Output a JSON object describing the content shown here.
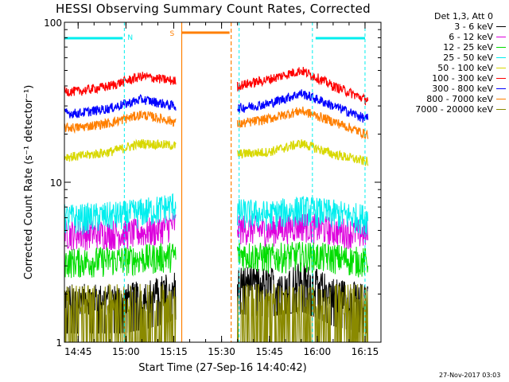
{
  "title": "HESSI Observing Summary Count Rates, Corrected",
  "footer": "27-Nov-2017 03:03",
  "legend": {
    "header": "Det 1,3, Att 0",
    "entries": [
      {
        "label": "3 - 6 keV",
        "color": "#000000"
      },
      {
        "label": "6 - 12 keV",
        "color": "#dd00dd"
      },
      {
        "label": "12 - 25 keV",
        "color": "#00dd00"
      },
      {
        "label": "25 - 50 keV",
        "color": "#00eeee"
      },
      {
        "label": "50 - 100 keV",
        "color": "#d8d800"
      },
      {
        "label": "100 - 300 keV",
        "color": "#ff0000"
      },
      {
        "label": "300 - 800 keV",
        "color": "#0000ff"
      },
      {
        "label": "800 - 7000 keV",
        "color": "#ff7f00"
      },
      {
        "label": "7000 - 20000 keV",
        "color": "#8a8a00"
      }
    ]
  },
  "chart_data": {
    "type": "line",
    "title": "HESSI Observing Summary Count Rates, Corrected",
    "xlabel": "Start Time (27-Sep-16 14:40:42)",
    "ylabel": "Corrected Count Rate (s⁻¹ detector⁻¹)",
    "y_scale": "log",
    "ylim": [
      1,
      100
    ],
    "y_ticks": [
      "1",
      "10",
      "100"
    ],
    "xlim": [
      "14:40:42",
      "16:20:00"
    ],
    "x_ticks": [
      "14:45",
      "15:00",
      "15:15",
      "15:30",
      "15:45",
      "16:00",
      "16:15"
    ],
    "x_unit": "time",
    "gaps": [
      [
        "15:15:40",
        "15:34:50"
      ]
    ],
    "markers": {
      "night_lines": [
        {
          "time": "14:59:30",
          "color": "#00eeee"
        },
        {
          "time": "15:35:30",
          "color": "#00eeee"
        },
        {
          "time": "16:15:00",
          "color": "#00eeee"
        },
        {
          "time": "15:58:30",
          "color": "#00eeee"
        }
      ],
      "saa_lines": [
        {
          "time": "15:17:30",
          "color": "#ff7f00"
        },
        {
          "time": "15:33:00",
          "color": "#ff7f00"
        }
      ],
      "night_bars": [
        {
          "label": "N",
          "start": "14:40:42",
          "end": "14:59:00",
          "color": "#00eeee"
        },
        {
          "label": "",
          "start": "15:59:30",
          "end": "16:15:00",
          "color": "#00eeee"
        }
      ],
      "saa_bars": [
        {
          "label": "S",
          "start": "15:17:30",
          "end": "15:32:30",
          "color": "#ff7f00"
        }
      ]
    },
    "series": [
      {
        "name": "3 - 6 keV",
        "color": "#000000",
        "t": [
          "14:45",
          "15:00",
          "15:10",
          "15:15",
          "15:35",
          "15:45",
          "15:55",
          "16:05",
          "16:15"
        ],
        "y": [
          1.9,
          1.9,
          2.1,
          2.3,
          2.5,
          2.4,
          2.6,
          2.1,
          1.9
        ]
      },
      {
        "name": "6 - 12 keV",
        "color": "#dd00dd",
        "t": [
          "14:45",
          "15:00",
          "15:10",
          "15:15",
          "15:35",
          "15:45",
          "15:55",
          "16:05",
          "16:15"
        ],
        "y": [
          4.8,
          4.8,
          5.0,
          5.5,
          5.2,
          5.0,
          5.4,
          5.0,
          4.8
        ]
      },
      {
        "name": "12 - 25 keV",
        "color": "#00dd00",
        "t": [
          "14:45",
          "15:00",
          "15:10",
          "15:15",
          "15:35",
          "15:45",
          "15:55",
          "16:05",
          "16:15"
        ],
        "y": [
          3.2,
          3.3,
          3.4,
          3.5,
          3.6,
          3.4,
          3.5,
          3.4,
          3.2
        ]
      },
      {
        "name": "25 - 50 keV",
        "color": "#00eeee",
        "t": [
          "14:45",
          "15:00",
          "15:10",
          "15:15",
          "15:35",
          "15:45",
          "15:55",
          "16:05",
          "16:15"
        ],
        "y": [
          6.0,
          6.3,
          6.8,
          7.2,
          6.5,
          6.3,
          6.8,
          6.4,
          6.0
        ]
      },
      {
        "name": "50 - 100 keV",
        "color": "#d8d800",
        "t": [
          "14:45",
          "14:55",
          "15:05",
          "15:15",
          "15:35",
          "15:45",
          "15:55",
          "16:05",
          "16:15"
        ],
        "y": [
          14.5,
          15.5,
          17.5,
          17.0,
          15.0,
          15.5,
          17.5,
          15.0,
          13.5
        ]
      },
      {
        "name": "100 - 300 keV",
        "color": "#ff0000",
        "t": [
          "14:45",
          "14:55",
          "15:05",
          "15:15",
          "15:35",
          "15:45",
          "15:55",
          "16:05",
          "16:15"
        ],
        "y": [
          37,
          40,
          46,
          43,
          40,
          44,
          50,
          40,
          33
        ]
      },
      {
        "name": "300 - 800 keV",
        "color": "#0000ff",
        "t": [
          "14:45",
          "14:55",
          "15:05",
          "15:15",
          "15:35",
          "15:45",
          "15:55",
          "16:05",
          "16:15"
        ],
        "y": [
          27,
          29,
          33,
          30,
          29,
          31,
          36,
          30,
          25
        ]
      },
      {
        "name": "800 - 7000 keV",
        "color": "#ff7f00",
        "t": [
          "14:45",
          "14:55",
          "15:05",
          "15:15",
          "15:35",
          "15:45",
          "15:55",
          "16:05",
          "16:15"
        ],
        "y": [
          22,
          23.5,
          26.5,
          24,
          23,
          25,
          28,
          24,
          20
        ]
      },
      {
        "name": "7000 - 20000 keV",
        "color": "#8a8a00",
        "t": [
          "14:45",
          "15:00",
          "15:10",
          "15:15",
          "15:35",
          "15:45",
          "15:55",
          "16:05",
          "16:15"
        ],
        "y": [
          1.9,
          1.9,
          1.9,
          1.9,
          1.9,
          1.9,
          1.9,
          1.9,
          1.9
        ]
      }
    ]
  }
}
